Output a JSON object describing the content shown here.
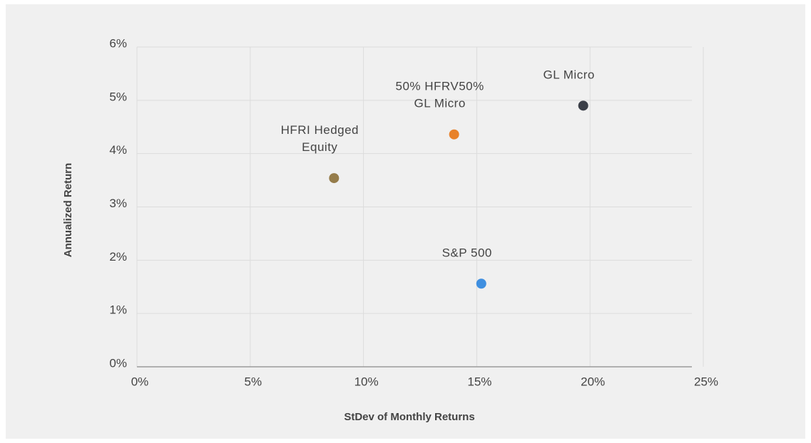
{
  "chart_data": {
    "type": "scatter",
    "x_label": "StDev of Monthly Returns",
    "y_label": "Annualized Return",
    "xlim": [
      0,
      25
    ],
    "xticks": [
      {
        "value": 0,
        "label": "0%"
      },
      {
        "value": 5,
        "label": "5%"
      },
      {
        "value": 10,
        "label": "10%"
      },
      {
        "value": 15,
        "label": "15%"
      },
      {
        "value": 20,
        "label": "20%"
      },
      {
        "value": 25,
        "label": "25%"
      }
    ],
    "ylim": [
      0,
      6
    ],
    "yticks": [
      {
        "value": 0,
        "label": "0%"
      },
      {
        "value": 1,
        "label": "1%"
      },
      {
        "value": 2,
        "label": "2%"
      },
      {
        "value": 3,
        "label": "3%"
      },
      {
        "value": 4,
        "label": "4%"
      },
      {
        "value": 5,
        "label": "5%"
      },
      {
        "value": 6,
        "label": "6%"
      }
    ],
    "grid": true,
    "series": [
      {
        "name": "GL Micro",
        "color": "#3b3f48",
        "x": [
          19.7
        ],
        "values": [
          4.9
        ]
      },
      {
        "name": "50% HFRV50% GL Micro",
        "color": "#e8822a",
        "x": [
          14.0
        ],
        "values": [
          4.36
        ]
      },
      {
        "name": "HFRI Hedged Equity",
        "color": "#957c4a",
        "x": [
          8.7
        ],
        "values": [
          3.54
        ]
      },
      {
        "name": "S&P 500",
        "color": "#3f8fe0",
        "x": [
          15.2
        ],
        "values": [
          1.56
        ]
      }
    ]
  }
}
